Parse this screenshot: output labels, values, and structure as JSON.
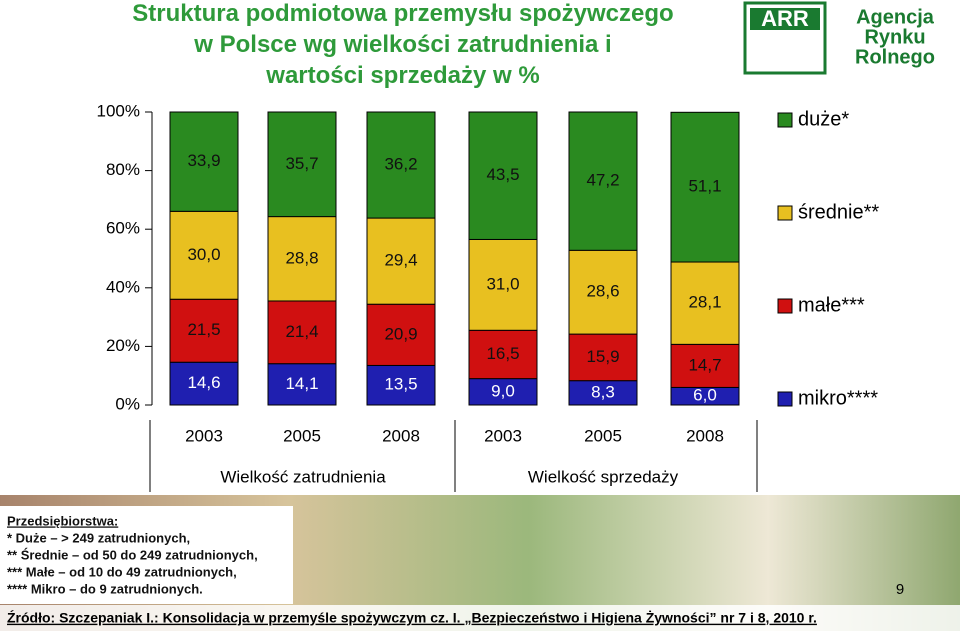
{
  "chart_data": {
    "type": "stacked_bar",
    "title": "Struktura podmiotowa przemysłu spożywczego w Polsce wg wielkości zatrudnienia i wartości sprzedaży w %",
    "categories": [
      "2003",
      "2005",
      "2008",
      "2003",
      "2005",
      "2008"
    ],
    "group_labels": [
      "Wielkość zatrudnienia",
      "Wielkość sprzedaży"
    ],
    "series": [
      {
        "name": "mikro****",
        "color": "#1f1fb0",
        "values": [
          14.6,
          14.1,
          13.5,
          9.0,
          8.3,
          6.0
        ],
        "value_labels": [
          "14,6",
          "14,1",
          "13,5",
          "9,0",
          "8,3",
          "6,0"
        ]
      },
      {
        "name": "małe***",
        "color": "#d01010",
        "values": [
          21.5,
          21.4,
          20.9,
          16.5,
          15.9,
          14.7
        ],
        "value_labels": [
          "21,5",
          "21,4",
          "20,9",
          "16,5",
          "15,9",
          "14,7"
        ]
      },
      {
        "name": "średnie**",
        "color": "#e8c020",
        "values": [
          30.0,
          28.8,
          29.4,
          31.0,
          28.6,
          28.1
        ],
        "value_labels": [
          "30,0",
          "28,8",
          "29,4",
          "31,0",
          "28,6",
          "28,1"
        ]
      },
      {
        "name": "duże*",
        "color": "#2a8a20",
        "values": [
          33.9,
          35.7,
          36.2,
          43.5,
          47.2,
          51.1
        ],
        "value_labels": [
          "33,9",
          "35,7",
          "36,2",
          "43,5",
          "47,2",
          "51,1"
        ]
      }
    ],
    "ylim": [
      0,
      100
    ],
    "yticks": [
      {
        "value": 0,
        "label": "0%"
      },
      {
        "value": 20,
        "label": "20%"
      },
      {
        "value": 40,
        "label": "40%"
      },
      {
        "value": 60,
        "label": "60%"
      },
      {
        "value": 80,
        "label": "80%"
      },
      {
        "value": 100,
        "label": "100%"
      }
    ],
    "legend": "right"
  },
  "logo": {
    "abbr": "ARR",
    "name": [
      "Agencja",
      "Rynku",
      "Rolnego"
    ]
  },
  "note": [
    "Przedsiębiorstwa:",
    "* Duże – > 249 zatrudnionych,",
    "** Średnie – od 50 do 249 zatrudnionych,",
    "*** Małe – od 10 do 49 zatrudnionych,",
    "**** Mikro – do 9 zatrudnionych."
  ],
  "source": "Źródło: Szczepaniak I.: Konsolidacja w przemyśle spożywczym cz. I. „Bezpieczeństwo i Higiena Żywności” nr 7 i 8, 2010 r.",
  "page_number": "9"
}
